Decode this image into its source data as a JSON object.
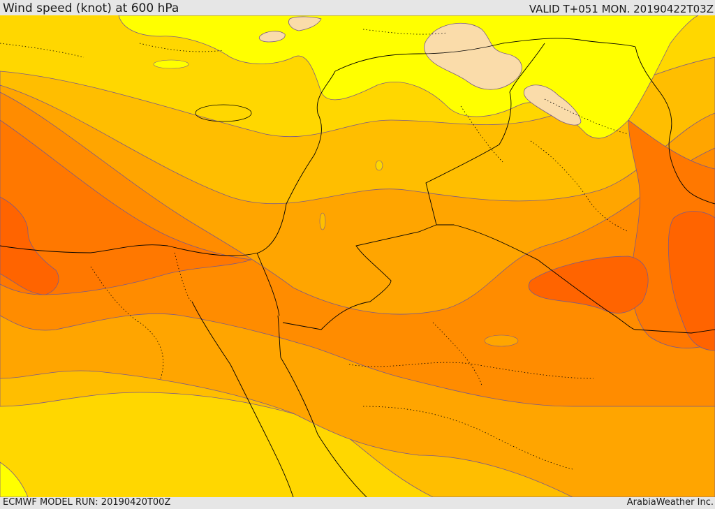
{
  "header": {
    "title": "Wind speed (knot) at 600 hPa",
    "valid_time": "VALID T+051 MON. 20190422T03Z"
  },
  "footer": {
    "model_run": "ECMWF MODEL RUN: 20190420T00Z",
    "credit": "ArabiaWeather Inc."
  },
  "palette": {
    "very_light": "#fadcaa",
    "yellow": "#ffff00",
    "gold": "#ffd700",
    "amber": "#ffbe00",
    "orange_light": "#ffa500",
    "orange": "#ff8c00",
    "orange_dark": "#ff7800",
    "red_orange": "#ff6400",
    "contour": "#7a5a8a",
    "border": "#000000"
  }
}
